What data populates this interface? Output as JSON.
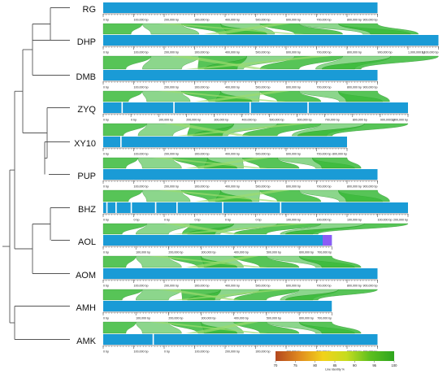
{
  "tracks": [
    {
      "name": "RG",
      "length": 900000,
      "gaps": [],
      "purple": 0
    },
    {
      "name": "DHP",
      "length": 1100000,
      "gaps": [],
      "purple": 0
    },
    {
      "name": "DMB",
      "length": 900000,
      "gaps": [],
      "purple": 0
    },
    {
      "name": "ZYQ",
      "length": 1000000,
      "gaps": [
        0.06,
        0.23,
        0.48,
        0.67
      ],
      "purple": 0
    },
    {
      "name": "XY10",
      "length": 800000,
      "gaps": [
        0.07
      ],
      "purple": 0
    },
    {
      "name": "PUP",
      "length": 900000,
      "gaps": [],
      "purple": 0
    },
    {
      "name": "BHZ",
      "length": 1000000,
      "gaps": [
        0.01,
        0.04,
        0.09,
        0.17,
        0.24,
        0.39,
        0.58
      ],
      "purple": 0
    },
    {
      "name": "AOL",
      "length": 750000,
      "gaps": [],
      "purple": 0.04
    },
    {
      "name": "AOM",
      "length": 900000,
      "gaps": [],
      "purple": 0
    },
    {
      "name": "AMH",
      "length": 750000,
      "gaps": [],
      "purple": 0
    },
    {
      "name": "AMK",
      "length": 900000,
      "gaps": [
        0.18
      ],
      "purple": 0
    }
  ],
  "tick_labels": {
    "RG": [
      "0 bp",
      "100,000 bp",
      "200,000 bp",
      "300,000 bp",
      "400,000 bp",
      "500,000 bp",
      "600,000 bp",
      "700,000 bp",
      "800,000 bp",
      "900,000 bp"
    ],
    "DHP": [
      "0 bp",
      "100,000 bp",
      "200,000 bp",
      "300,000 bp",
      "400,000 bp",
      "500,000 bp",
      "600,000 bp",
      "700,000 bp",
      "800,000 bp",
      "900,000 bp",
      "1,000,000 bp",
      "1,100,000 bp"
    ],
    "DMB": [
      "0 bp",
      "100,000 bp",
      "200,000 bp",
      "300,000 bp",
      "400,000 bp",
      "500,000 bp",
      "600,000 bp",
      "700,000 bp",
      "800,000 bp",
      "900,000 bp"
    ],
    "ZYQ": [
      "0 bp",
      "0 bp",
      "100,000 bp",
      "200,000 bp",
      "300,000 bp",
      "400,000 bp",
      "500,000 bp",
      "600,000 bp",
      "700,000 bp",
      "800,000 bp",
      "900,000 bp",
      "1,000,000 bp"
    ],
    "XY10": [
      "0 bp",
      "100,000 bp",
      "200,000 bp",
      "300,000 bp",
      "400,000 bp",
      "500,000 bp",
      "600,000 bp",
      "700,000 bp",
      "800,000 bp"
    ],
    "PUP": [
      "0 bp",
      "100,000 bp",
      "200,000 bp",
      "300,000 bp",
      "400,000 bp",
      "500,000 bp",
      "600,000 bp",
      "700,000 bp",
      "800,000 bp",
      "900,000 bp"
    ],
    "BHZ": [
      "0 bp",
      "0 bp",
      "0 bp",
      "0 bp",
      "0 bp",
      "0 bp",
      "100,000 bp",
      "100,000 bp",
      "100,000 bp",
      "100,000 bp",
      "200,000 bp"
    ],
    "AOL": [
      "0 bp",
      "100,000 bp",
      "200,000 bp",
      "300,000 bp",
      "400,000 bp",
      "500,000 bp",
      "600,000 bp",
      "700,000 bp"
    ],
    "AOM": [
      "0 bp",
      "100,000 bp",
      "200,000 bp",
      "300,000 bp",
      "400,000 bp",
      "500,000 bp",
      "600,000 bp",
      "700,000 bp",
      "800,000 bp",
      "900,000 bp"
    ],
    "AMH": [
      "0 bp",
      "100,000 bp",
      "200,000 bp",
      "300,000 bp",
      "400,000 bp",
      "500,000 bp",
      "600,000 bp",
      "700,000 bp"
    ],
    "AMK": [
      "0 bp",
      "100,000 bp",
      "0 bp",
      "100,000 bp",
      "200,000 bp",
      "300,000 bp",
      "400,000 bp",
      "500,000 bp",
      "600,000 bp",
      "700,000 bp"
    ]
  },
  "legend": {
    "title": "Line Identity %",
    "ticks": [
      "70",
      "75",
      "80",
      "85",
      "90",
      "95",
      "100"
    ]
  },
  "colors": {
    "bar": "#1a9bd6",
    "bar_purple": "#8b5cf6",
    "synteny": "#2db52d",
    "tree": "#555555",
    "legend_gradient": [
      "#b3471f",
      "#e08a1f",
      "#f2d21a",
      "#c6dc1f",
      "#5cbf1f",
      "#2ea51f"
    ]
  }
}
